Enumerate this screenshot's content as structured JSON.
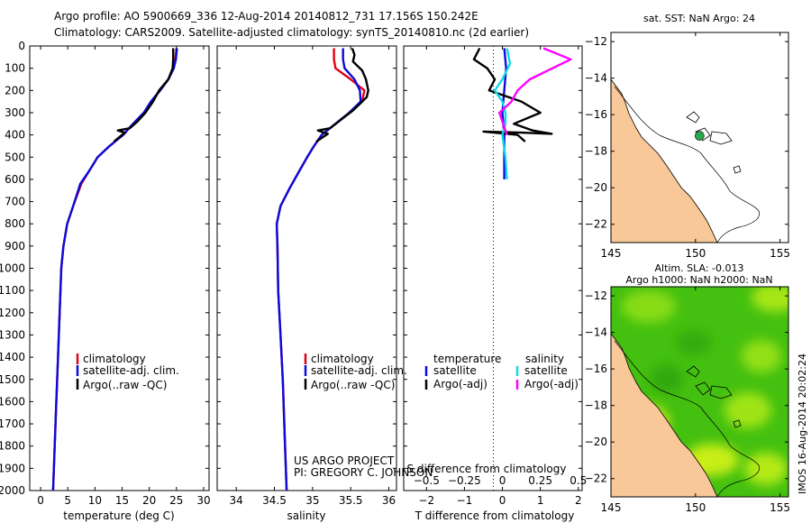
{
  "header": {
    "line1": "Argo profile: AO 5900669_336 12-Aug-2014 20140812_731 17.156S 150.242E",
    "line2": "Climatology: CARS2009. Satellite-adjusted climatology: synTS_20140810.nc (2d earlier)"
  },
  "credit": {
    "line1": "US ARGO PROJECT",
    "line2": "PI: GREGORY C. JOHNSON",
    "imos": "IMOS 16-Aug-2014 20:02:24"
  },
  "colors": {
    "climatology": "#e0001a",
    "satellite": "#0a0adc",
    "argo": "#000000",
    "sal_satellite": "#10d8e8",
    "sal_argo": "#ff00ff",
    "land": "#f8c898",
    "ocean_green": "#44c010"
  },
  "chart_data": [
    {
      "type": "line",
      "name": "temperature-panel",
      "xlabel": "temperature (deg C)",
      "ylabel": "",
      "xlim": [
        -2,
        31
      ],
      "ylim": [
        2000,
        0
      ],
      "xticks": [
        0,
        5,
        10,
        15,
        20,
        25,
        30
      ],
      "yticks": [
        0,
        100,
        200,
        300,
        400,
        500,
        600,
        700,
        800,
        900,
        1000,
        1100,
        1200,
        1300,
        1400,
        1500,
        1600,
        1700,
        1800,
        1900,
        2000
      ],
      "legend": [
        "climatology",
        "satellite-adj. clim.",
        "Argo(..raw -QC)"
      ],
      "series": [
        {
          "name": "climatology",
          "color": "#e0001a",
          "points": [
            [
              25,
              10
            ],
            [
              24.8,
              60
            ],
            [
              24.5,
              100
            ],
            [
              23.5,
              150
            ],
            [
              22,
              200
            ],
            [
              20.3,
              250
            ],
            [
              19,
              300
            ],
            [
              17,
              350
            ],
            [
              15.2,
              400
            ],
            [
              12.7,
              450
            ],
            [
              10.5,
              500
            ],
            [
              9,
              560
            ],
            [
              7.5,
              620
            ],
            [
              6,
              720
            ],
            [
              4.9,
              800
            ],
            [
              4.2,
              900
            ],
            [
              3.8,
              1000
            ],
            [
              3.5,
              1200
            ],
            [
              3.2,
              1400
            ],
            [
              2.9,
              1600
            ],
            [
              2.6,
              1800
            ],
            [
              2.3,
              2000
            ]
          ]
        },
        {
          "name": "satellite-adj. clim.",
          "color": "#0a0adc",
          "points": [
            [
              25.1,
              10
            ],
            [
              24.9,
              60
            ],
            [
              24.5,
              100
            ],
            [
              23.5,
              150
            ],
            [
              22,
              200
            ],
            [
              20.3,
              250
            ],
            [
              19,
              300
            ],
            [
              17,
              350
            ],
            [
              15.2,
              400
            ],
            [
              12.7,
              450
            ],
            [
              10.5,
              500
            ],
            [
              9,
              560
            ],
            [
              7.3,
              620
            ],
            [
              6,
              720
            ],
            [
              4.9,
              800
            ],
            [
              4.2,
              900
            ],
            [
              3.8,
              1000
            ],
            [
              3.5,
              1200
            ],
            [
              3.2,
              1400
            ],
            [
              2.9,
              1600
            ],
            [
              2.6,
              1800
            ],
            [
              2.3,
              2000
            ]
          ]
        },
        {
          "name": "Argo(..raw -QC)",
          "color": "#000000",
          "points": [
            [
              24.4,
              10
            ],
            [
              24.4,
              60
            ],
            [
              24.3,
              100
            ],
            [
              23.5,
              150
            ],
            [
              21.8,
              200
            ],
            [
              20.7,
              250
            ],
            [
              19.3,
              300
            ],
            [
              17.8,
              340
            ],
            [
              16.4,
              370
            ],
            [
              14.2,
              380
            ],
            [
              15.5,
              390
            ],
            [
              13.5,
              430
            ]
          ]
        }
      ]
    },
    {
      "type": "line",
      "name": "salinity-panel",
      "xlabel": "salinity",
      "ylabel": "",
      "xlim": [
        33.75,
        36.1
      ],
      "ylim": [
        2000,
        0
      ],
      "xticks": [
        34,
        34.5,
        35,
        35.5,
        36
      ],
      "legend": [
        "climatology",
        "satellite-adj. clim.",
        "Argo(..raw -QC)"
      ],
      "series": [
        {
          "name": "climatology",
          "color": "#e0001a",
          "points": [
            [
              35.28,
              10
            ],
            [
              35.28,
              60
            ],
            [
              35.3,
              100
            ],
            [
              35.5,
              150
            ],
            [
              35.68,
              200
            ],
            [
              35.65,
              250
            ],
            [
              35.48,
              300
            ],
            [
              35.3,
              350
            ],
            [
              35.12,
              400
            ],
            [
              35.02,
              450
            ],
            [
              34.93,
              500
            ],
            [
              34.83,
              560
            ],
            [
              34.7,
              640
            ],
            [
              34.58,
              720
            ],
            [
              34.53,
              800
            ],
            [
              34.54,
              900
            ],
            [
              34.55,
              1100
            ],
            [
              34.58,
              1300
            ],
            [
              34.61,
              1500
            ],
            [
              34.63,
              1700
            ],
            [
              34.65,
              1900
            ],
            [
              34.66,
              2000
            ]
          ]
        },
        {
          "name": "satellite-adj. clim.",
          "color": "#0a0adc",
          "points": [
            [
              35.4,
              10
            ],
            [
              35.4,
              60
            ],
            [
              35.42,
              100
            ],
            [
              35.55,
              150
            ],
            [
              35.62,
              200
            ],
            [
              35.63,
              250
            ],
            [
              35.48,
              300
            ],
            [
              35.3,
              350
            ],
            [
              35.12,
              400
            ],
            [
              35.02,
              450
            ],
            [
              34.93,
              500
            ],
            [
              34.83,
              560
            ],
            [
              34.7,
              640
            ],
            [
              34.58,
              720
            ],
            [
              34.53,
              800
            ],
            [
              34.54,
              900
            ],
            [
              34.55,
              1100
            ],
            [
              34.58,
              1300
            ],
            [
              34.61,
              1500
            ],
            [
              34.63,
              1700
            ],
            [
              34.65,
              1900
            ],
            [
              34.66,
              2000
            ]
          ]
        },
        {
          "name": "Argo(..raw -QC)",
          "color": "#000000",
          "points": [
            [
              35.52,
              10
            ],
            [
              35.55,
              40
            ],
            [
              35.53,
              70
            ],
            [
              35.65,
              110
            ],
            [
              35.7,
              150
            ],
            [
              35.73,
              200
            ],
            [
              35.71,
              230
            ],
            [
              35.62,
              260
            ],
            [
              35.53,
              290
            ],
            [
              35.38,
              330
            ],
            [
              35.23,
              370
            ],
            [
              35.07,
              380
            ],
            [
              35.2,
              395
            ],
            [
              35.05,
              430
            ]
          ]
        }
      ]
    },
    {
      "type": "line",
      "name": "difference-panel",
      "xlabel": "T difference from climatology",
      "x2label": "S difference from climatology",
      "xlim": [
        -2.6,
        2.1
      ],
      "ylim": [
        2000,
        0
      ],
      "xticks": [
        -2,
        -1,
        0,
        1,
        2
      ],
      "xtick_labels": [
        "−2",
        "−1",
        "0",
        "1",
        "2"
      ],
      "x2ticks": [
        -0.5,
        -0.25,
        0,
        0.25,
        0.5
      ],
      "x2tick_labels": [
        "−0.5",
        "−0.25",
        "0",
        "0.25",
        "0.5"
      ],
      "legend_temperature_title": "temperature",
      "legend_salinity_title": "salinity",
      "legend_temperature": [
        "satellite",
        "Argo(-adj)"
      ],
      "legend_salinity": [
        "satellite",
        "Argo(-adj)"
      ],
      "series": [
        {
          "name": "T satellite",
          "color": "#0a0adc",
          "points": [
            [
              0.05,
              10
            ],
            [
              0.1,
              100
            ],
            [
              0.05,
              200
            ],
            [
              0,
              300
            ],
            [
              0.05,
              400
            ],
            [
              0.05,
              500
            ],
            [
              0.05,
              600
            ]
          ]
        },
        {
          "name": "T Argo(-adj)",
          "color": "#000000",
          "points": [
            [
              -0.6,
              10
            ],
            [
              -0.75,
              60
            ],
            [
              -0.4,
              100
            ],
            [
              -0.2,
              150
            ],
            [
              -0.35,
              200
            ],
            [
              0.5,
              250
            ],
            [
              1.0,
              300
            ],
            [
              0.3,
              350
            ],
            [
              0.8,
              380
            ],
            [
              1.3,
              395
            ],
            [
              0.5,
              390
            ],
            [
              -0.5,
              385
            ],
            [
              0.4,
              400
            ],
            [
              0.6,
              430
            ]
          ]
        },
        {
          "name": "S satellite",
          "color": "#10d8e8",
          "points": [
            [
              0.03,
              10
            ],
            [
              0.05,
              80
            ],
            [
              0,
              150
            ],
            [
              -0.05,
              200
            ],
            [
              0,
              250
            ],
            [
              0.02,
              300
            ],
            [
              0.02,
              350
            ],
            [
              0,
              400
            ],
            [
              0.02,
              500
            ],
            [
              0.03,
              600
            ]
          ]
        },
        {
          "name": "S Argo(-adj)",
          "color": "#ff00ff",
          "points": [
            [
              0.27,
              10
            ],
            [
              0.45,
              60
            ],
            [
              0.33,
              100
            ],
            [
              0.18,
              150
            ],
            [
              0.1,
              200
            ],
            [
              0.06,
              250
            ],
            [
              -0.02,
              300
            ],
            [
              0.03,
              400
            ]
          ]
        }
      ]
    },
    {
      "type": "map",
      "name": "sst-map",
      "title": "sat. SST: NaN Argo: 24",
      "xlim": [
        145,
        155.5
      ],
      "ylim": [
        -23,
        -11.5
      ],
      "xticks": [
        145,
        150,
        155
      ],
      "yticks": [
        -12,
        -14,
        -16,
        -18,
        -20,
        -22
      ],
      "ytick_labels": [
        "−12",
        "−14",
        "−16",
        "−18",
        "−20",
        "−22"
      ],
      "argo_location": [
        150.242,
        -17.156
      ]
    },
    {
      "type": "heatmap",
      "name": "sla-map",
      "title_line1": "Altim. SLA: -0.013",
      "title_line2": "Argo h1000: NaN h2000: NaN",
      "xlim": [
        145,
        155.5
      ],
      "ylim": [
        -23,
        -11.5
      ],
      "xticks": [
        145,
        150,
        155
      ],
      "yticks": [
        -12,
        -14,
        -16,
        -18,
        -20,
        -22
      ],
      "ytick_labels": [
        "−12",
        "−14",
        "−16",
        "−18",
        "−20",
        "−22"
      ]
    }
  ]
}
